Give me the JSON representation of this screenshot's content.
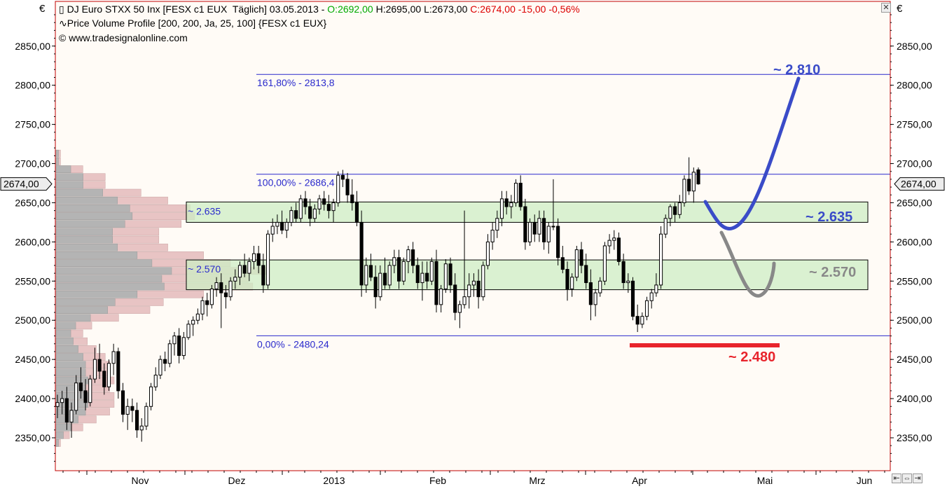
{
  "legend": {
    "symbol_title": "DJ Euro STXX 50 Inx [FESX c1 EUX  Täglich] 03.05.2013 - ",
    "open": "O:2692,00",
    "high_low": " H:2695,00 L:2673,00 ",
    "close": "C:2674,00 -15,00 -0,56%",
    "indicator": "Price Volume Profile [200, 200, Ja, 25, 100] {FESX c1 EUX}",
    "copyright": "© www.tradesignalonline.com"
  },
  "currency_symbol": "€",
  "colors": {
    "open_green": "#00aa00",
    "close_red": "#dd0000",
    "fib_blue": "#2a2acc",
    "zone_fill": "#cdeec4",
    "arrow_blue": "#3a4bc8",
    "arrow_gray": "#888888",
    "support_red": "#e8242c",
    "frame_red": "#c00000",
    "vp_gray": "#b4b4b4",
    "vp_pink": "#e8c4c4"
  },
  "chart_data": {
    "type": "candlestick",
    "yaxis_ticks": [
      "2850,00",
      "2800,00",
      "2750,00",
      "2700,00",
      "2650,00",
      "2600,00",
      "2550,00",
      "2500,00",
      "2450,00",
      "2400,00",
      "2350,00"
    ],
    "ylim": [
      2308,
      2907
    ],
    "x_months": [
      "Nov",
      "Dez",
      "2013",
      "Feb",
      "Mrz",
      "Apr",
      "Mai",
      "Jun"
    ],
    "last_price_label": "2674,00",
    "last_price": 2674,
    "fib_levels": [
      {
        "label": "161,80% - 2813,8",
        "value": 2813.8
      },
      {
        "label": "100,00% - 2686,4",
        "value": 2686.4
      },
      {
        "label": "0,00% - 2480,24",
        "value": 2480.24
      }
    ],
    "zones": [
      {
        "label": "~ 2.635",
        "top": 2651,
        "bottom": 2625
      },
      {
        "label": "~ 2.570",
        "top": 2577,
        "bottom": 2539
      }
    ],
    "annotations": [
      {
        "label": "~ 2.810",
        "value": 2810
      },
      {
        "label": "~ 2.635",
        "value": 2635
      },
      {
        "label": "~ 2.570",
        "value": 2570
      },
      {
        "label": "~ 2.480",
        "value": 2480
      }
    ],
    "candles": [
      [
        2390,
        2405,
        2375,
        2395
      ],
      [
        2395,
        2410,
        2380,
        2400
      ],
      [
        2400,
        2415,
        2360,
        2370
      ],
      [
        2370,
        2395,
        2350,
        2385
      ],
      [
        2385,
        2430,
        2380,
        2420
      ],
      [
        2420,
        2440,
        2400,
        2410
      ],
      [
        2410,
        2425,
        2385,
        2395
      ],
      [
        2395,
        2430,
        2390,
        2425
      ],
      [
        2425,
        2465,
        2420,
        2450
      ],
      [
        2450,
        2470,
        2425,
        2435
      ],
      [
        2435,
        2445,
        2405,
        2415
      ],
      [
        2415,
        2450,
        2410,
        2445
      ],
      [
        2445,
        2470,
        2430,
        2460
      ],
      [
        2460,
        2465,
        2400,
        2410
      ],
      [
        2410,
        2420,
        2370,
        2380
      ],
      [
        2380,
        2400,
        2360,
        2390
      ],
      [
        2390,
        2400,
        2370,
        2385
      ],
      [
        2385,
        2395,
        2350,
        2360
      ],
      [
        2360,
        2375,
        2345,
        2365
      ],
      [
        2365,
        2395,
        2360,
        2390
      ],
      [
        2390,
        2420,
        2385,
        2415
      ],
      [
        2415,
        2440,
        2410,
        2430
      ],
      [
        2430,
        2455,
        2425,
        2450
      ],
      [
        2450,
        2460,
        2435,
        2445
      ],
      [
        2445,
        2475,
        2440,
        2470
      ],
      [
        2470,
        2485,
        2455,
        2480
      ],
      [
        2480,
        2490,
        2445,
        2455
      ],
      [
        2455,
        2485,
        2450,
        2478
      ],
      [
        2478,
        2500,
        2475,
        2495
      ],
      [
        2495,
        2505,
        2480,
        2500
      ],
      [
        2500,
        2515,
        2495,
        2508
      ],
      [
        2508,
        2530,
        2500,
        2525
      ],
      [
        2525,
        2535,
        2505,
        2520
      ],
      [
        2520,
        2545,
        2515,
        2540
      ],
      [
        2540,
        2555,
        2530,
        2548
      ],
      [
        2548,
        2560,
        2490,
        2535
      ],
      [
        2535,
        2545,
        2515,
        2530
      ],
      [
        2530,
        2555,
        2525,
        2550
      ],
      [
        2550,
        2565,
        2540,
        2555
      ],
      [
        2555,
        2575,
        2545,
        2570
      ],
      [
        2570,
        2585,
        2555,
        2560
      ],
      [
        2560,
        2580,
        2550,
        2575
      ],
      [
        2575,
        2595,
        2565,
        2585
      ],
      [
        2585,
        2595,
        2560,
        2570
      ],
      [
        2570,
        2585,
        2535,
        2545
      ],
      [
        2545,
        2615,
        2540,
        2610
      ],
      [
        2610,
        2630,
        2600,
        2620
      ],
      [
        2620,
        2635,
        2610,
        2625
      ],
      [
        2625,
        2640,
        2610,
        2615
      ],
      [
        2615,
        2630,
        2605,
        2625
      ],
      [
        2625,
        2645,
        2620,
        2640
      ],
      [
        2640,
        2650,
        2625,
        2630
      ],
      [
        2630,
        2660,
        2625,
        2655
      ],
      [
        2655,
        2665,
        2635,
        2645
      ],
      [
        2645,
        2655,
        2620,
        2630
      ],
      [
        2630,
        2648,
        2625,
        2642
      ],
      [
        2642,
        2660,
        2635,
        2655
      ],
      [
        2655,
        2665,
        2640,
        2648
      ],
      [
        2648,
        2660,
        2630,
        2640
      ],
      [
        2640,
        2655,
        2625,
        2650
      ],
      [
        2650,
        2690,
        2645,
        2685
      ],
      [
        2685,
        2692,
        2670,
        2680
      ],
      [
        2680,
        2688,
        2650,
        2660
      ],
      [
        2660,
        2680,
        2640,
        2650
      ],
      [
        2650,
        2665,
        2620,
        2625
      ],
      [
        2625,
        2640,
        2530,
        2545
      ],
      [
        2545,
        2580,
        2535,
        2570
      ],
      [
        2570,
        2585,
        2550,
        2555
      ],
      [
        2555,
        2570,
        2515,
        2530
      ],
      [
        2530,
        2570,
        2525,
        2560
      ],
      [
        2560,
        2580,
        2540,
        2545
      ],
      [
        2545,
        2575,
        2540,
        2570
      ],
      [
        2570,
        2590,
        2560,
        2580
      ],
      [
        2580,
        2590,
        2540,
        2550
      ],
      [
        2550,
        2580,
        2545,
        2575
      ],
      [
        2575,
        2595,
        2560,
        2590
      ],
      [
        2590,
        2600,
        2560,
        2570
      ],
      [
        2570,
        2580,
        2540,
        2548
      ],
      [
        2548,
        2575,
        2525,
        2560
      ],
      [
        2560,
        2575,
        2540,
        2550
      ],
      [
        2550,
        2580,
        2545,
        2575
      ],
      [
        2575,
        2590,
        2510,
        2520
      ],
      [
        2520,
        2545,
        2510,
        2540
      ],
      [
        2540,
        2578,
        2535,
        2572
      ],
      [
        2572,
        2580,
        2535,
        2545
      ],
      [
        2545,
        2560,
        2500,
        2510
      ],
      [
        2510,
        2525,
        2490,
        2520
      ],
      [
        2520,
        2640,
        2515,
        2530
      ],
      [
        2530,
        2560,
        2515,
        2545
      ],
      [
        2545,
        2560,
        2530,
        2550
      ],
      [
        2550,
        2565,
        2515,
        2530
      ],
      [
        2530,
        2575,
        2525,
        2570
      ],
      [
        2570,
        2610,
        2565,
        2600
      ],
      [
        2600,
        2625,
        2590,
        2615
      ],
      [
        2615,
        2640,
        2605,
        2630
      ],
      [
        2630,
        2665,
        2620,
        2655
      ],
      [
        2655,
        2665,
        2635,
        2645
      ],
      [
        2645,
        2660,
        2630,
        2650
      ],
      [
        2650,
        2680,
        2645,
        2675
      ],
      [
        2675,
        2685,
        2640,
        2645
      ],
      [
        2645,
        2655,
        2590,
        2600
      ],
      [
        2600,
        2630,
        2595,
        2625
      ],
      [
        2625,
        2635,
        2600,
        2610
      ],
      [
        2610,
        2640,
        2600,
        2630
      ],
      [
        2630,
        2640,
        2590,
        2600
      ],
      [
        2600,
        2625,
        2585,
        2620
      ],
      [
        2620,
        2680,
        2615,
        2620
      ],
      [
        2620,
        2630,
        2570,
        2580
      ],
      [
        2580,
        2595,
        2560,
        2565
      ],
      [
        2565,
        2575,
        2525,
        2540
      ],
      [
        2540,
        2560,
        2530,
        2555
      ],
      [
        2555,
        2595,
        2550,
        2590
      ],
      [
        2590,
        2600,
        2560,
        2570
      ],
      [
        2570,
        2585,
        2540,
        2548
      ],
      [
        2548,
        2565,
        2500,
        2520
      ],
      [
        2520,
        2540,
        2505,
        2535
      ],
      [
        2535,
        2555,
        2530,
        2550
      ],
      [
        2550,
        2600,
        2545,
        2595
      ],
      [
        2595,
        2610,
        2585,
        2602
      ],
      [
        2602,
        2615,
        2590,
        2605
      ],
      [
        2605,
        2612,
        2570,
        2575
      ],
      [
        2575,
        2585,
        2540,
        2548
      ],
      [
        2548,
        2560,
        2535,
        2550
      ],
      [
        2550,
        2555,
        2500,
        2505
      ],
      [
        2505,
        2520,
        2485,
        2495
      ],
      [
        2495,
        2510,
        2490,
        2505
      ],
      [
        2505,
        2530,
        2500,
        2525
      ],
      [
        2525,
        2540,
        2515,
        2535
      ],
      [
        2535,
        2560,
        2530,
        2545
      ],
      [
        2545,
        2620,
        2540,
        2610
      ],
      [
        2610,
        2635,
        2605,
        2630
      ],
      [
        2630,
        2648,
        2620,
        2645
      ],
      [
        2645,
        2650,
        2625,
        2635
      ],
      [
        2635,
        2660,
        2630,
        2650
      ],
      [
        2650,
        2685,
        2645,
        2680
      ],
      [
        2680,
        2708,
        2660,
        2665
      ],
      [
        2665,
        2695,
        2650,
        2689
      ],
      [
        2692,
        2695,
        2673,
        2674
      ]
    ]
  }
}
